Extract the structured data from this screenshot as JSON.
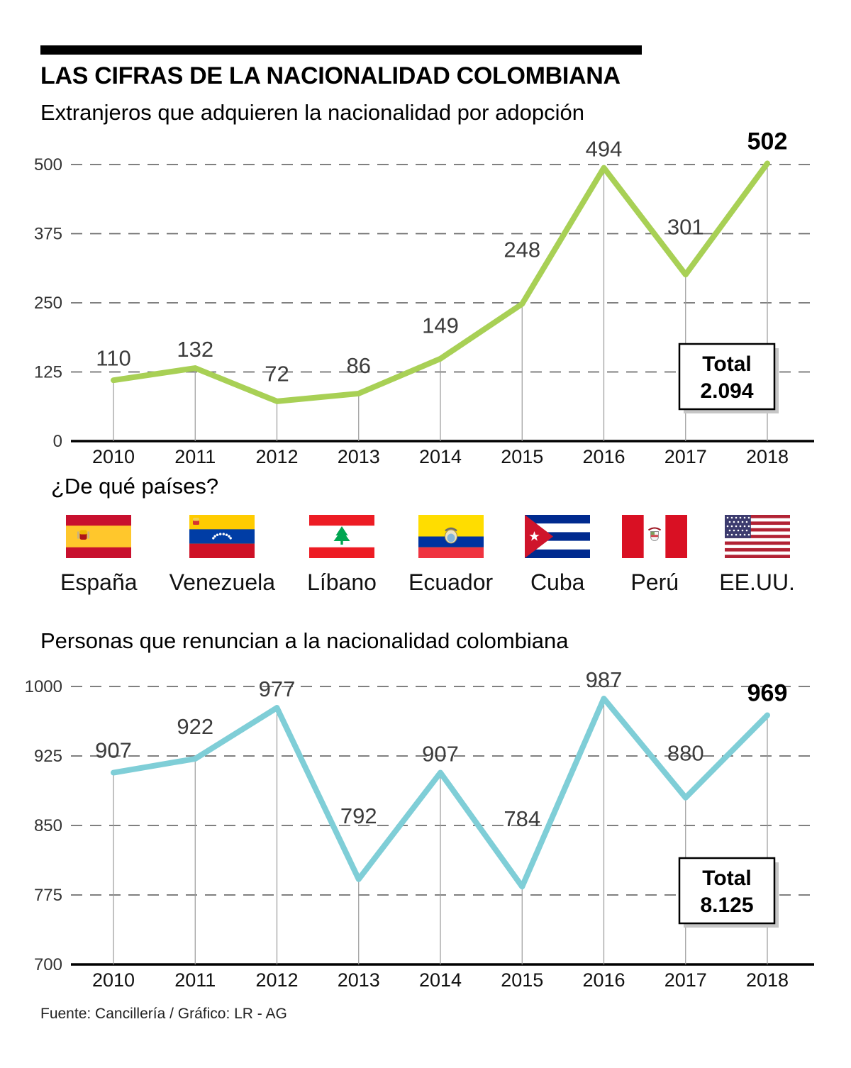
{
  "header": {
    "title": "LAS CIFRAS DE LA NACIONALIDAD COLOMBIANA"
  },
  "chart_data": [
    {
      "type": "line",
      "title": "Extranjeros que adquieren la nacionalidad por adopción",
      "categories": [
        "2010",
        "2011",
        "2012",
        "2013",
        "2014",
        "2015",
        "2016",
        "2017",
        "2018"
      ],
      "values": [
        110,
        132,
        72,
        86,
        149,
        248,
        494,
        301,
        502
      ],
      "xlabel": "",
      "ylabel": "",
      "ylim": [
        0,
        500
      ],
      "yticks": [
        0,
        125,
        250,
        375,
        500
      ],
      "grid": true,
      "line_color": "#a8d055",
      "total_label": "Total",
      "total_value": "2.094"
    },
    {
      "type": "line",
      "title": "Personas que renuncian a la nacionalidad colombiana",
      "categories": [
        "2010",
        "2011",
        "2012",
        "2013",
        "2014",
        "2015",
        "2016",
        "2017",
        "2018"
      ],
      "values": [
        907,
        922,
        977,
        792,
        907,
        784,
        987,
        880,
        969
      ],
      "xlabel": "",
      "ylabel": "",
      "ylim": [
        700,
        1000
      ],
      "yticks": [
        700,
        775,
        850,
        925,
        1000
      ],
      "grid": true,
      "line_color": "#7fced7",
      "total_label": "Total",
      "total_value": "8.125"
    }
  ],
  "countries_section": {
    "title": "¿De qué países?",
    "countries": [
      {
        "name": "España",
        "flag": "spain"
      },
      {
        "name": "Venezuela",
        "flag": "venezuela"
      },
      {
        "name": "Líbano",
        "flag": "lebanon"
      },
      {
        "name": "Ecuador",
        "flag": "ecuador"
      },
      {
        "name": "Cuba",
        "flag": "cuba"
      },
      {
        "name": "Perú",
        "flag": "peru"
      },
      {
        "name": "EE.UU.",
        "flag": "usa"
      }
    ]
  },
  "footer": {
    "source": "Fuente: Cancillería / Gráfico: LR - AG"
  }
}
